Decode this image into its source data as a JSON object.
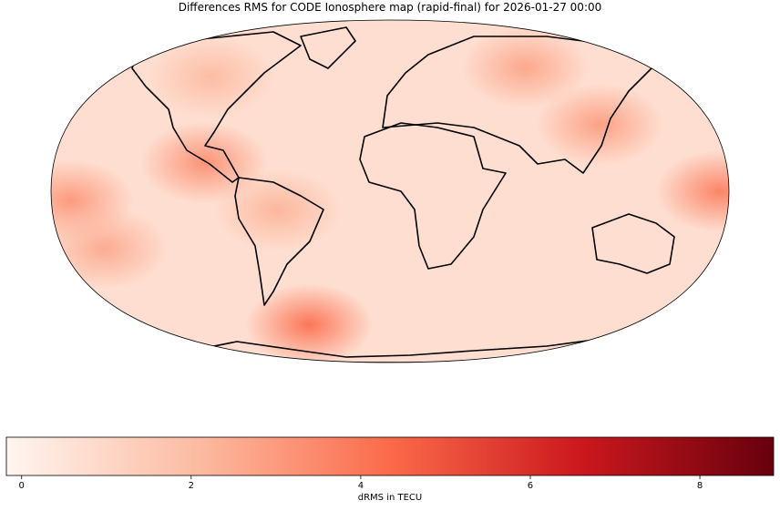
{
  "chart_data": {
    "type": "map",
    "title": "Differences RMS for CODE Ionosphere map (rapid-final) for 2026-01-27 00:00",
    "colormap": [
      "#fff5f0",
      "#fcbba1",
      "#fb6a4a",
      "#cb181d",
      "#67000d"
    ],
    "hotspots": [
      {
        "lon": -100,
        "lat": 15,
        "value": 3.2
      },
      {
        "lon": -170,
        "lat": -5,
        "value": 3
      },
      {
        "lon": -160,
        "lat": -30,
        "value": 2.5
      },
      {
        "lon": -60,
        "lat": -70,
        "value": 4
      },
      {
        "lon": 120,
        "lat": 35,
        "value": 2.8
      },
      {
        "lon": 95,
        "lat": 65,
        "value": 2.6
      },
      {
        "lon": 175,
        "lat": 0,
        "value": 3.6
      },
      {
        "lon": -60,
        "lat": -10,
        "value": 2.2
      },
      {
        "lon": -120,
        "lat": 60,
        "value": 2
      }
    ],
    "colorbar": {
      "label": "dRMS in TECU",
      "lim": [
        -0.18,
        8.87
      ],
      "ticks": [
        0,
        2,
        4,
        6,
        8
      ]
    }
  }
}
